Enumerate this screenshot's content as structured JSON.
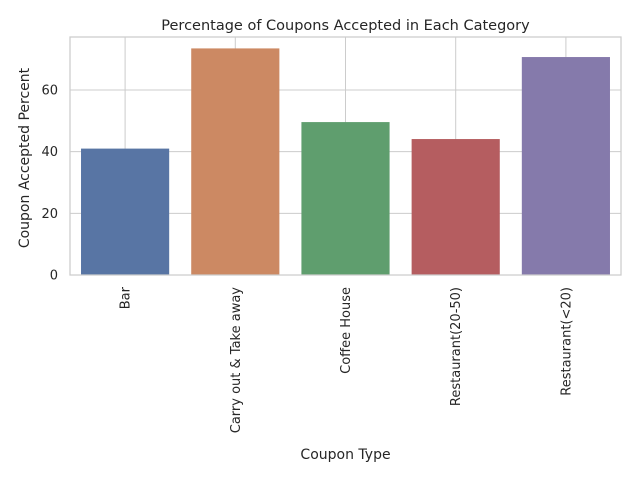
{
  "chart_data": {
    "type": "bar",
    "title": "Percentage of Coupons Accepted in Each Category",
    "xlabel": "Coupon Type",
    "ylabel": "Coupon Accepted Percent",
    "categories": [
      "Bar",
      "Carry out & Take away",
      "Coffee House",
      "Restaurant(20-50)",
      "Restaurant(<20)"
    ],
    "values": [
      41.0,
      73.5,
      49.6,
      44.1,
      70.7
    ],
    "colors": [
      "#5875a4",
      "#cc8963",
      "#5f9e6e",
      "#b55d60",
      "#857aab"
    ],
    "ylim": [
      0,
      77.2
    ],
    "yticks": [
      0,
      20,
      40,
      60
    ],
    "grid": true,
    "x_tick_rotation": "vertical"
  }
}
